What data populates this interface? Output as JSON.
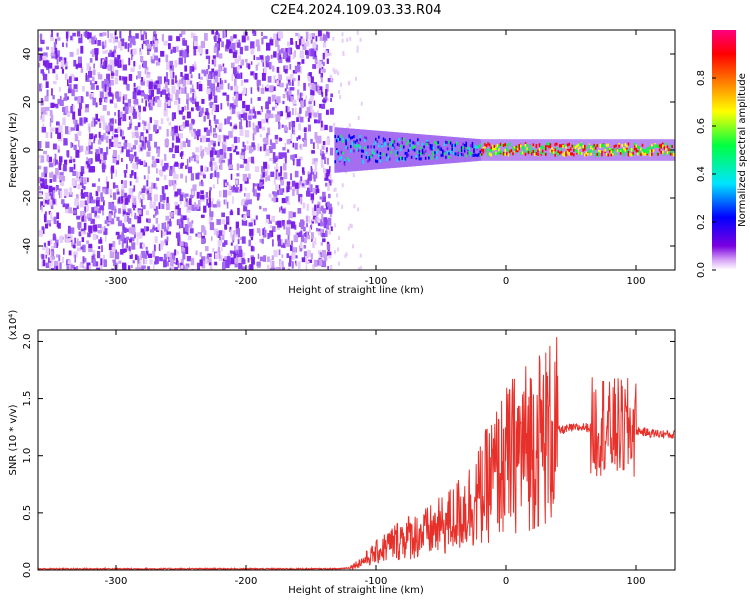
{
  "title": "C2E4.2024.109.03.33.R04",
  "chart_data": [
    {
      "type": "heatmap",
      "xlabel": "Height of straight line (km)",
      "ylabel": "Frequency (Hz)",
      "xlim": [
        -360,
        130
      ],
      "ylim": [
        -50,
        50
      ],
      "xticks": [
        -300,
        -200,
        -100,
        0,
        100
      ],
      "yticks": [
        -40,
        -20,
        0,
        20,
        40
      ],
      "colorbar": {
        "label": "Normalized spectral amplitude",
        "ticks": [
          "0.0",
          "0.2",
          "0.4",
          "0.6",
          "0.8"
        ],
        "range": [
          0,
          1
        ],
        "colors": [
          "#ffffff",
          "#d9a8f7",
          "#7a00e0",
          "#0000ff",
          "#00e5ff",
          "#00ff40",
          "#ffff00",
          "#ff8000",
          "#ff0000",
          "#ff0080"
        ]
      },
      "regions": [
        {
          "x": [
            -360,
            -135
          ],
          "freq": [
            -50,
            50
          ],
          "amplitude": 0.12
        },
        {
          "x": [
            -130,
            -20
          ],
          "freq": [
            -8,
            8
          ],
          "amplitude": 0.45
        },
        {
          "x": [
            -20,
            130
          ],
          "freq": [
            -3,
            3
          ],
          "amplitude": 0.85
        }
      ]
    },
    {
      "type": "line",
      "xlabel": "Height of straight line (km)",
      "ylabel": "SNR (10 * v/v)",
      "multiplier": "(x10⁴)",
      "xlim": [
        -360,
        130
      ],
      "ylim": [
        0,
        2.1
      ],
      "xticks": [
        -300,
        -200,
        -100,
        0,
        100
      ],
      "yticks": [
        "0.0",
        "0.5",
        "1.0",
        "1.5",
        "2.0"
      ],
      "color": "#e8302a",
      "series": [
        {
          "x": [
            -360,
            -300,
            -200,
            -130,
            -120,
            -110,
            -100,
            -90,
            -80,
            -70,
            -60,
            -50,
            -40,
            -30,
            -20,
            -10,
            0,
            10,
            20,
            30,
            40,
            50,
            60,
            70,
            75,
            80,
            85,
            90,
            95,
            100,
            110,
            120,
            130
          ],
          "y": [
            0.01,
            0.01,
            0.01,
            0.01,
            0.02,
            0.08,
            0.15,
            0.22,
            0.28,
            0.3,
            0.33,
            0.38,
            0.45,
            0.55,
            0.65,
            0.82,
            0.95,
            1.05,
            1.12,
            1.18,
            1.22,
            1.24,
            1.25,
            1.24,
            1.3,
            1.2,
            1.25,
            1.22,
            1.24,
            1.22,
            1.2,
            1.19,
            1.18
          ]
        }
      ]
    }
  ]
}
